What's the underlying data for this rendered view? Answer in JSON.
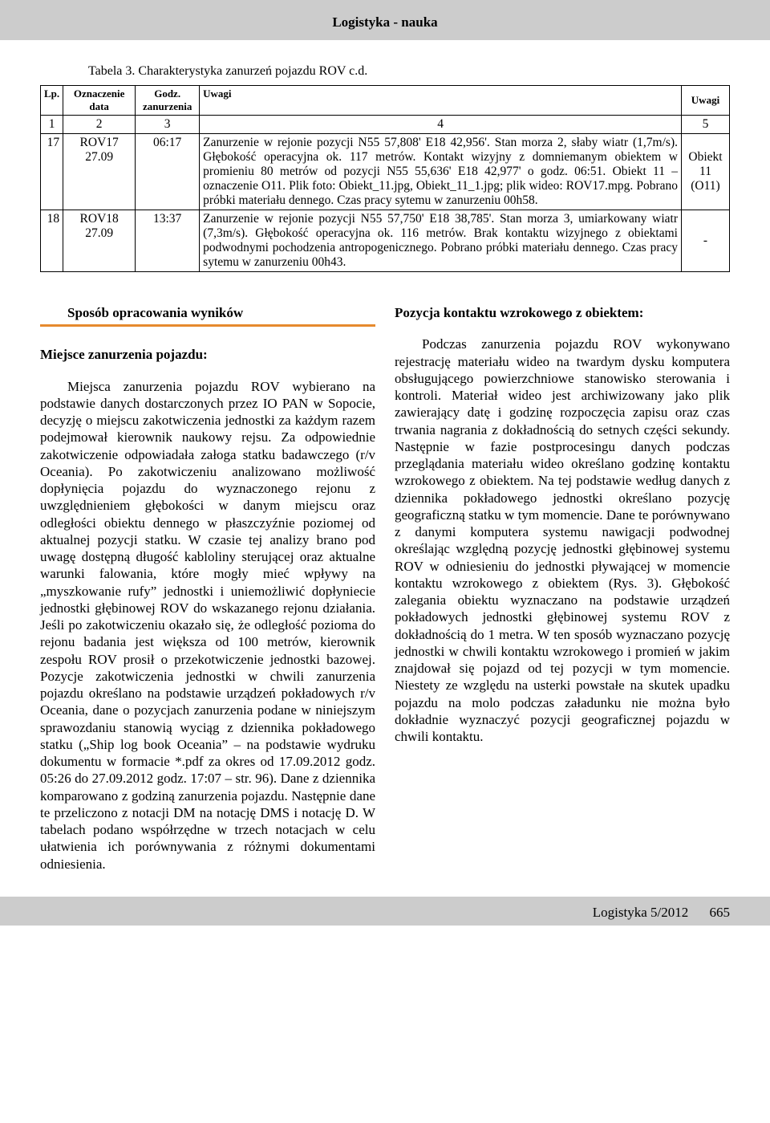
{
  "header": {
    "title": "Logistyka - nauka"
  },
  "table": {
    "caption": "Tabela  3. Charakterystyka zanurzeń pojazdu ROV c.d.",
    "columns": {
      "lp": "Lp.",
      "ozn": "Oznaczenie data",
      "godz": "Godz. zanurzenia",
      "uwagi": "Uwagi",
      "uwagi2": "Uwagi"
    },
    "numrow": {
      "c1": "1",
      "c2": "2",
      "c3": "3",
      "c4": "4",
      "c5": "5"
    },
    "rows": [
      {
        "lp": "17",
        "ozn_line1": "ROV17",
        "ozn_line2": "27.09",
        "godz": "06:17",
        "uwagi": "Zanurzenie w rejonie pozycji N55 57,808' E18 42,956'. Stan morza 2, słaby wiatr (1,7m/s). Głębokość operacyjna ok. 117 metrów. Kontakt wizyjny z domniemanym obiektem w promieniu 80 metrów od pozycji N55 55,636' E18 42,977' o godz. 06:51. Obiekt 11 – oznaczenie O11. Plik foto: Obiekt_11.jpg, Obiekt_11_1.jpg; plik wideo: ROV17.mpg. Pobrano próbki materiału dennego. Czas pracy sytemu w zanurzeniu 00h58.",
        "uwagi2_line1": "Obiekt",
        "uwagi2_line2": "11",
        "uwagi2_line3": "(O11)"
      },
      {
        "lp": "18",
        "ozn_line1": "ROV18",
        "ozn_line2": "27.09",
        "godz": "13:37",
        "uwagi": "Zanurzenie w rejonie pozycji N55 57,750' E18 38,785'. Stan morza 3, umiarkowany wiatr (7,3m/s). Głębokość operacyjna ok. 116 metrów. Brak kontaktu wizyjnego z obiektami podwodnymi pochodzenia antropogenicznego. Pobrano próbki materiału dennego. Czas pracy sytemu w zanurzeniu 00h43.",
        "uwagi2": "-"
      }
    ]
  },
  "left": {
    "section_title": "Sposób opracowania wyników",
    "sub_head": "Miejsce zanurzenia pojazdu:",
    "p1": "Miejsca zanurzenia pojazdu ROV wybierano na podstawie danych dostarczonych przez IO PAN w Sopocie, decyzję o miejscu zakotwiczenia jednostki za każdym razem podejmował kierownik naukowy rejsu. Za odpowiednie zakotwiczenie odpowiadała załoga statku badawczego (r/v Oceania). Po zakotwiczeniu analizowano możliwość dopłynięcia pojazdu do wyznaczonego rejonu z uwzględnieniem głębokości w danym miejscu oraz odległości obiektu dennego w płaszczyźnie poziomej od aktualnej pozycji statku. W czasie tej analizy brano pod uwagę dostępną długość kabloliny sterującej oraz aktualne warunki falowania, które mogły mieć wpływy na „myszkowanie rufy” jednostki i uniemożliwić dopłyniecie jednostki głębinowej ROV do wskazanego rejonu działania. Jeśli po zakotwiczeniu okazało się, że odległość pozioma do rejonu badania jest większa od 100 metrów, kierownik zespołu ROV prosił o przekotwiczenie jednostki bazowej. Pozycje zakotwiczenia jednostki w chwili zanurzenia pojazdu określano na podstawie urządzeń pokładowych r/v Oceania, dane o pozycjach zanurzenia podane w niniejszym sprawozdaniu stanowią wyciąg z dziennika pokładowego statku („Ship log book Oceania” – na podstawie wydruku dokumentu w formacie *.pdf za okres od 17.09.2012 godz. 05:26 do 27.09.2012 godz. 17:07 – str. 96). Dane z dziennika komparowano z godziną zanurzenia pojazdu. Następnie dane te przeliczono z notacji DM na notację DMS i notację D. W tabelach podano współrzędne w trzech notacjach w celu ułatwienia ich porównywania z różnymi dokumentami odniesienia."
  },
  "right": {
    "sub_head": "Pozycja kontaktu wzrokowego z obiektem:",
    "p1": "Podczas zanurzenia pojazdu ROV wykonywano rejestrację materiału wideo na twardym dysku komputera obsługującego powierzchniowe stanowisko sterowania i kontroli. Materiał wideo jest archiwizowany jako plik zawierający datę i godzinę rozpoczęcia zapisu oraz czas trwania nagrania z dokładnością do setnych części sekundy. Następnie w fazie postprocesingu danych podczas przeglądania materiału wideo określano godzinę kontaktu wzrokowego z obiektem. Na tej podstawie według danych z dziennika pokładowego jednostki określano pozycję geograficzną statku w tym momencie. Dane te porównywano z danymi komputera systemu nawigacji podwodnej określając względną pozycję jednostki głębinowej systemu ROV w odniesieniu do jednostki pływającej w momencie kontaktu wzrokowego z obiektem (Rys. 3). Głębokość zalegania obiektu wyznaczano na podstawie urządzeń pokładowych jednostki głębinowej systemu ROV z dokładnością do 1 metra. W ten sposób wyznaczano pozycję jednostki w chwili kontaktu wzrokowego i promień w jakim znajdował się pojazd od tej pozycji w tym momencie. Niestety ze względu na usterki powstałe na skutek upadku pojazdu na molo podczas załadunku nie można było dokładnie wyznaczyć pozycji geograficznej pojazdu w chwili kontaktu."
  },
  "footer": {
    "issue": "Logistyka 5/2012",
    "page": "665"
  },
  "colors": {
    "accent": "#e68a2e",
    "band": "#cccccc"
  }
}
